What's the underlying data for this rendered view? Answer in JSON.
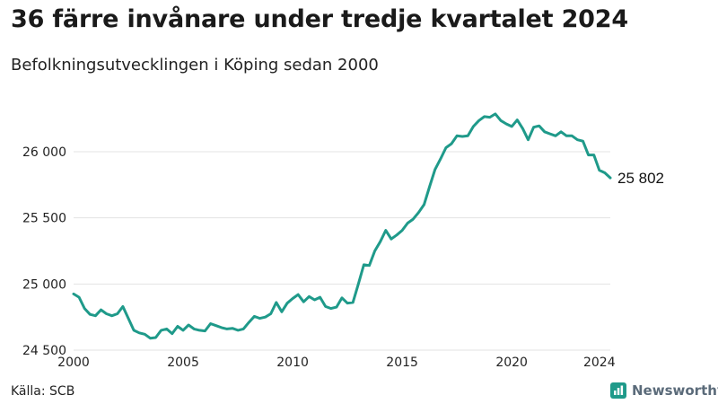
{
  "header": {
    "title": "36 färre invånare under tredje kvartalet 2024",
    "subtitle": "Befolkningsutvecklingen i Köping sedan 2000"
  },
  "footer": {
    "source": "Källa: SCB",
    "brand": "Newsworthy"
  },
  "colors": {
    "line": "#1f9a8a",
    "grid": "#e3e3e3",
    "brand_icon": "#1f9a8a"
  },
  "chart_data": {
    "type": "line",
    "title": "36 färre invånare under tredje kvartalet 2024",
    "subtitle": "Befolkningsutvecklingen i Köping sedan 2000",
    "xlabel": "",
    "ylabel": "",
    "xlim": [
      2000,
      2024.5
    ],
    "ylim": [
      24500,
      26400
    ],
    "x_ticks": [
      2000,
      2005,
      2010,
      2015,
      2020,
      2024
    ],
    "y_ticks": [
      24500,
      25000,
      25500,
      26000
    ],
    "x_tick_labels": [
      "2000",
      "2005",
      "2010",
      "2015",
      "2020",
      "2024"
    ],
    "y_tick_labels": [
      "24 500",
      "25 000",
      "25 500",
      "26 000"
    ],
    "grid": "horizontal",
    "end_label": "25 802",
    "series": [
      {
        "values": [
          [
            2000.0,
            24925
          ],
          [
            2000.25,
            24900
          ],
          [
            2000.5,
            24815
          ],
          [
            2000.75,
            24770
          ],
          [
            2001.0,
            24760
          ],
          [
            2001.25,
            24805
          ],
          [
            2001.5,
            24775
          ],
          [
            2001.75,
            24760
          ],
          [
            2002.0,
            24775
          ],
          [
            2002.25,
            24830
          ],
          [
            2002.5,
            24740
          ],
          [
            2002.75,
            24650
          ],
          [
            2003.0,
            24630
          ],
          [
            2003.25,
            24620
          ],
          [
            2003.5,
            24590
          ],
          [
            2003.75,
            24595
          ],
          [
            2004.0,
            24650
          ],
          [
            2004.25,
            24660
          ],
          [
            2004.5,
            24625
          ],
          [
            2004.75,
            24680
          ],
          [
            2005.0,
            24650
          ],
          [
            2005.25,
            24690
          ],
          [
            2005.5,
            24660
          ],
          [
            2005.75,
            24650
          ],
          [
            2006.0,
            24645
          ],
          [
            2006.25,
            24700
          ],
          [
            2006.5,
            24685
          ],
          [
            2006.75,
            24670
          ],
          [
            2007.0,
            24660
          ],
          [
            2007.25,
            24665
          ],
          [
            2007.5,
            24650
          ],
          [
            2007.75,
            24660
          ],
          [
            2008.0,
            24710
          ],
          [
            2008.25,
            24755
          ],
          [
            2008.5,
            24740
          ],
          [
            2008.75,
            24750
          ],
          [
            2009.0,
            24775
          ],
          [
            2009.25,
            24860
          ],
          [
            2009.5,
            24790
          ],
          [
            2009.75,
            24855
          ],
          [
            2010.0,
            24890
          ],
          [
            2010.25,
            24920
          ],
          [
            2010.5,
            24865
          ],
          [
            2010.75,
            24905
          ],
          [
            2011.0,
            24880
          ],
          [
            2011.25,
            24900
          ],
          [
            2011.5,
            24830
          ],
          [
            2011.75,
            24815
          ],
          [
            2012.0,
            24825
          ],
          [
            2012.25,
            24895
          ],
          [
            2012.5,
            24855
          ],
          [
            2012.75,
            24860
          ],
          [
            2013.0,
            25000
          ],
          [
            2013.25,
            25145
          ],
          [
            2013.5,
            25140
          ],
          [
            2013.75,
            25250
          ],
          [
            2014.0,
            25320
          ],
          [
            2014.25,
            25405
          ],
          [
            2014.5,
            25340
          ],
          [
            2014.75,
            25370
          ],
          [
            2015.0,
            25405
          ],
          [
            2015.25,
            25460
          ],
          [
            2015.5,
            25490
          ],
          [
            2015.75,
            25540
          ],
          [
            2016.0,
            25600
          ],
          [
            2016.25,
            25735
          ],
          [
            2016.5,
            25865
          ],
          [
            2016.75,
            25945
          ],
          [
            2017.0,
            26030
          ],
          [
            2017.25,
            26060
          ],
          [
            2017.5,
            26120
          ],
          [
            2017.75,
            26115
          ],
          [
            2018.0,
            26120
          ],
          [
            2018.25,
            26190
          ],
          [
            2018.5,
            26235
          ],
          [
            2018.75,
            26265
          ],
          [
            2019.0,
            26260
          ],
          [
            2019.25,
            26285
          ],
          [
            2019.5,
            26235
          ],
          [
            2019.75,
            26210
          ],
          [
            2020.0,
            26190
          ],
          [
            2020.25,
            26240
          ],
          [
            2020.5,
            26175
          ],
          [
            2020.75,
            26090
          ],
          [
            2021.0,
            26185
          ],
          [
            2021.25,
            26195
          ],
          [
            2021.5,
            26150
          ],
          [
            2021.75,
            26135
          ],
          [
            2022.0,
            26120
          ],
          [
            2022.25,
            26150
          ],
          [
            2022.5,
            26120
          ],
          [
            2022.75,
            26120
          ],
          [
            2023.0,
            26090
          ],
          [
            2023.25,
            26080
          ],
          [
            2023.5,
            25975
          ],
          [
            2023.75,
            25975
          ],
          [
            2024.0,
            25860
          ],
          [
            2024.25,
            25840
          ],
          [
            2024.5,
            25802
          ]
        ]
      }
    ]
  }
}
